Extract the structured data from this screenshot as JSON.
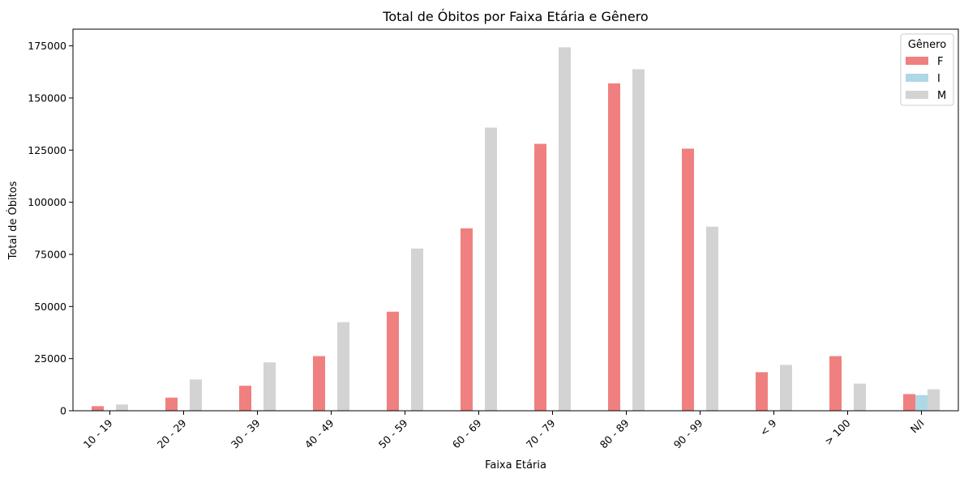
{
  "chart_data": {
    "type": "bar",
    "title": "Total de Óbitos por Faixa Etária e Gênero",
    "xlabel": "Faixa Etária",
    "ylabel": "Total de Óbitos",
    "categories": [
      "10 - 19",
      "20 - 29",
      "30 - 39",
      "40 - 49",
      "50 - 59",
      "60 - 69",
      "70 - 79",
      "80 - 89",
      "90 - 99",
      "< 9",
      "> 100",
      "N/I"
    ],
    "ylim": [
      0,
      183000
    ],
    "yticks": [
      0,
      25000,
      50000,
      75000,
      100000,
      125000,
      150000,
      175000
    ],
    "grid": false,
    "legend": {
      "title": "Gênero",
      "placement": "top-right"
    },
    "series": [
      {
        "name": "F",
        "color": "#f08080",
        "values": [
          2200,
          6300,
          12000,
          26200,
          47500,
          87500,
          128000,
          157000,
          125700,
          18500,
          26200,
          8000
        ]
      },
      {
        "name": "I",
        "color": "#add8e6",
        "values": [
          0,
          0,
          0,
          0,
          0,
          0,
          0,
          0,
          0,
          0,
          0,
          7500
        ]
      },
      {
        "name": "M",
        "color": "#d3d3d3",
        "values": [
          3000,
          15000,
          23200,
          42500,
          77800,
          135800,
          174300,
          163800,
          88300,
          22000,
          13000,
          10300
        ]
      }
    ]
  }
}
